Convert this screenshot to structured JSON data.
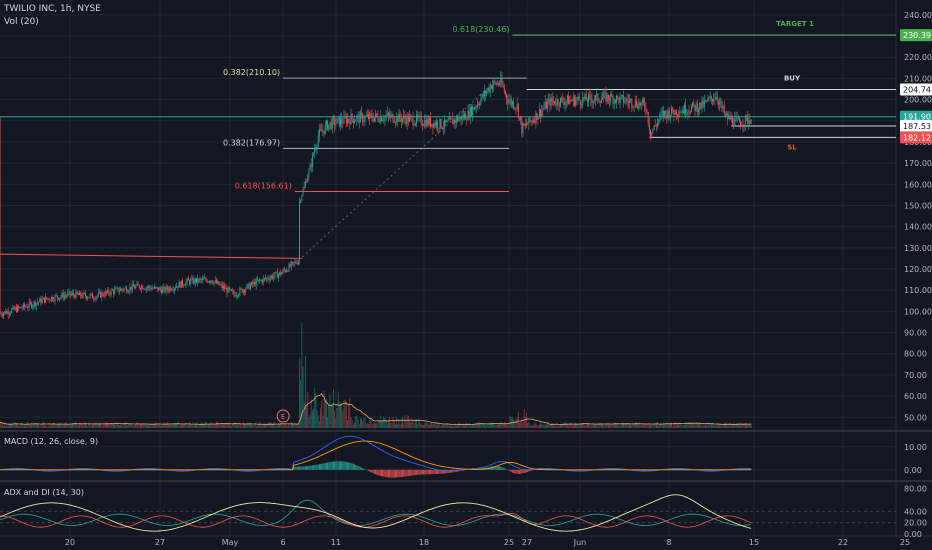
{
  "header": {
    "symbol": "TWILIO INC, 1h, NYSE",
    "volume_label": "Vol (20)"
  },
  "colors": {
    "background": "#131722",
    "grid": "#1f2533",
    "up": "#26a69a",
    "down": "#ef5350",
    "target": "#4caf50",
    "text": "#b2b5be",
    "macd": "#2962ff",
    "signal": "#ff9800",
    "adx_line": "#f5e8a3",
    "di_plus": "#26a69a",
    "di_minus": "#ef5350"
  },
  "chart_data": [
    {
      "type": "candlestick",
      "title": "TWILIO INC, 1h, NYSE",
      "y_range": [
        44,
        247
      ],
      "y_ticks": [
        "240.00",
        "230.00",
        "220.00",
        "210.00",
        "200.00",
        "190.00",
        "180.00",
        "170.00",
        "160.00",
        "150.00",
        "140.00",
        "130.00",
        "120.00",
        "110.00",
        "100.00",
        "90.00",
        "80.00",
        "70.00",
        "60.00",
        "50.00"
      ],
      "x_ticks": [
        "20",
        "27",
        "May",
        "6",
        "11",
        "18",
        "25",
        "27",
        "Jun",
        "8",
        "15",
        "22",
        "25"
      ],
      "price_path": [
        {
          "bar": 0,
          "price": 99
        },
        {
          "bar": 20,
          "price": 102
        },
        {
          "bar": 40,
          "price": 106
        },
        {
          "bar": 60,
          "price": 108
        },
        {
          "bar": 80,
          "price": 107
        },
        {
          "bar": 100,
          "price": 110
        },
        {
          "bar": 120,
          "price": 112
        },
        {
          "bar": 140,
          "price": 110
        },
        {
          "bar": 160,
          "price": 114
        },
        {
          "bar": 180,
          "price": 115
        },
        {
          "bar": 200,
          "price": 108
        },
        {
          "bar": 220,
          "price": 114
        },
        {
          "bar": 240,
          "price": 118
        },
        {
          "bar": 255,
          "price": 124
        },
        {
          "bar": 256,
          "price": 152
        },
        {
          "bar": 264,
          "price": 166
        },
        {
          "bar": 272,
          "price": 183
        },
        {
          "bar": 280,
          "price": 188
        },
        {
          "bar": 300,
          "price": 191
        },
        {
          "bar": 330,
          "price": 192
        },
        {
          "bar": 360,
          "price": 190
        },
        {
          "bar": 380,
          "price": 188
        },
        {
          "bar": 400,
          "price": 193
        },
        {
          "bar": 412,
          "price": 201
        },
        {
          "bar": 420,
          "price": 207
        },
        {
          "bar": 428,
          "price": 208
        },
        {
          "bar": 434,
          "price": 200
        },
        {
          "bar": 442,
          "price": 197
        },
        {
          "bar": 446,
          "price": 186
        },
        {
          "bar": 454,
          "price": 190
        },
        {
          "bar": 470,
          "price": 199
        },
        {
          "bar": 500,
          "price": 200
        },
        {
          "bar": 520,
          "price": 201
        },
        {
          "bar": 540,
          "price": 199
        },
        {
          "bar": 552,
          "price": 197
        },
        {
          "bar": 556,
          "price": 184
        },
        {
          "bar": 566,
          "price": 193
        },
        {
          "bar": 590,
          "price": 196
        },
        {
          "bar": 600,
          "price": 197
        },
        {
          "bar": 612,
          "price": 202
        },
        {
          "bar": 620,
          "price": 192
        },
        {
          "bar": 630,
          "price": 189
        },
        {
          "bar": 642,
          "price": 191
        }
      ],
      "levels": [
        {
          "price": 230.39,
          "label": "TARGET 1",
          "axis_label": "230.39",
          "style": "target"
        },
        {
          "price": 204.74,
          "label": "BUY",
          "axis_label": "204.74",
          "style": "buy"
        },
        {
          "price": 191.9,
          "axis_label": "191.90",
          "style": "current"
        },
        {
          "price": 187.53,
          "axis_label": "187.53",
          "style": "support"
        },
        {
          "price": 182.12,
          "label": "SL",
          "axis_label": "182.12",
          "style": "stop"
        }
      ],
      "fib_labels": [
        {
          "text": "0.618(230.46)",
          "price": 230.46
        },
        {
          "text": "0.382(210.10)",
          "price": 210.1
        },
        {
          "text": "0.382(176.97)",
          "price": 176.97
        },
        {
          "text": "0.618(156.61)",
          "price": 156.61
        }
      ],
      "earnings_marker": "E"
    },
    {
      "type": "bar",
      "title": "MACD (12, 26, close, 9)",
      "y_ticks": [
        "10.00",
        "0.00"
      ],
      "y_range": [
        -4,
        16
      ]
    },
    {
      "type": "line",
      "title": "ADX and DI (14, 30)",
      "y_ticks": [
        "80.00",
        "40.00",
        "20.00",
        "0.00"
      ],
      "y_range": [
        0,
        90
      ]
    }
  ]
}
